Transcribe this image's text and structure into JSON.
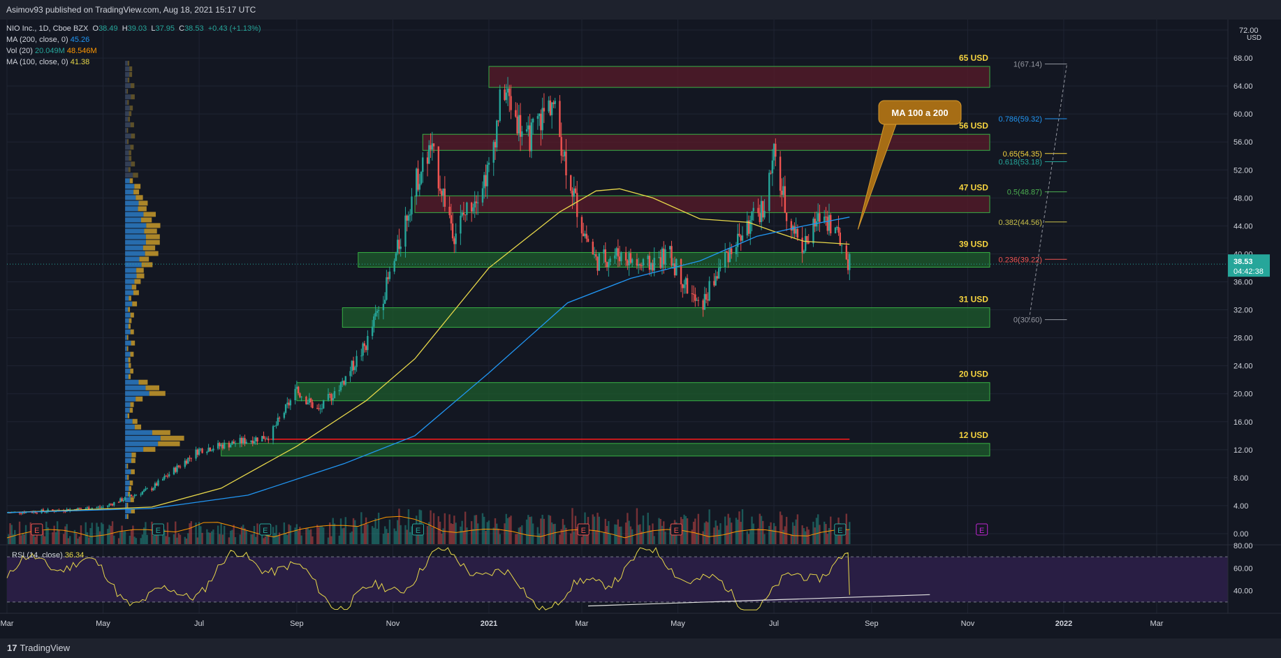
{
  "header": {
    "published": "Asimov93 published on TradingView.com, Aug 18, 2021 15:17 UTC"
  },
  "legend": {
    "symbol": "NIO Inc., 1D, Cboe BZX",
    "o_label": "O",
    "o_value": "38.49",
    "h_label": "H",
    "h_value": "39.03",
    "l_label": "L",
    "l_value": "37.95",
    "c_label": "C",
    "c_value": "38.53",
    "change": "+0.43 (+1.13%)",
    "ma200_label": "MA (200, close, 0)",
    "ma200_value": "45.26",
    "vol_label": "Vol (20)",
    "vol_value1": "20.049M",
    "vol_value2": "48.546M",
    "ma100_label": "MA (100, close, 0)",
    "ma100_value": "41.38"
  },
  "rsi_legend": {
    "label": "RSI (14, close)",
    "value": "36.34"
  },
  "footer": {
    "brand": "TradingView",
    "brand_glyph": "17"
  },
  "colors": {
    "background": "#131722",
    "bull": "#26a69a",
    "bear": "#ef5350",
    "ma200": "#2196f3",
    "ma100": "#e8d84a",
    "vol_ma": "#ff9800",
    "rsi": "#e8d84a",
    "zone_fill_green": "#1e5c2c",
    "zone_fill_red": "#5a1b2a",
    "zone_border": "#38b044",
    "zone_label": "#f5d33f",
    "callout_fill": "#a66d15",
    "price_tag": "#26a69a"
  },
  "chart_data": {
    "type": "candlestick",
    "x_tick_labels": [
      "Mar",
      "May",
      "Jul",
      "Sep",
      "Nov",
      "2021",
      "Mar",
      "May",
      "Jul",
      "Sep",
      "Nov",
      "2022",
      "Mar"
    ],
    "y_axis": {
      "unit": "USD",
      "ylim": [
        -1.5,
        73.5
      ],
      "ticks": [
        "72.00",
        "68.00",
        "64.00",
        "60.00",
        "56.00",
        "52.00",
        "48.00",
        "44.00",
        "40.00",
        "36.00",
        "32.00",
        "28.00",
        "24.00",
        "20.00",
        "16.00",
        "12.00",
        "8.00",
        "4.00",
        "0.00"
      ]
    },
    "price_series": {
      "x": [
        "2020-03-01",
        "2020-04-01",
        "2020-05-01",
        "2020-06-01",
        "2020-07-01",
        "2020-07-20",
        "2020-08-15",
        "2020-09-01",
        "2020-09-15",
        "2020-10-01",
        "2020-10-15",
        "2020-11-01",
        "2020-11-15",
        "2020-11-25",
        "2020-12-10",
        "2021-01-01",
        "2021-01-10",
        "2021-01-25",
        "2021-02-10",
        "2021-02-20",
        "2021-03-01",
        "2021-03-10",
        "2021-03-25",
        "2021-04-10",
        "2021-04-25",
        "2021-05-10",
        "2021-05-15",
        "2021-06-01",
        "2021-06-15",
        "2021-06-25",
        "2021-07-01",
        "2021-07-10",
        "2021-07-20",
        "2021-08-01",
        "2021-08-10",
        "2021-08-18"
      ],
      "close": [
        3.0,
        3.3,
        3.8,
        6.5,
        12.0,
        12.8,
        14.0,
        20.5,
        17.5,
        22.0,
        27.0,
        38.0,
        50.0,
        55.0,
        43.0,
        52.0,
        64.0,
        56.0,
        62.0,
        52.0,
        44.0,
        39.0,
        40.0,
        38.0,
        40.0,
        34.0,
        32.0,
        40.0,
        44.0,
        47.0,
        54.0,
        45.0,
        41.0,
        46.0,
        43.0,
        38.53
      ]
    },
    "ma100": {
      "x": [
        "2020-03-01",
        "2020-06-01",
        "2020-07-15",
        "2020-09-01",
        "2020-10-15",
        "2020-11-15",
        "2021-01-01",
        "2021-02-15",
        "2021-03-10",
        "2021-03-25",
        "2021-04-15",
        "2021-05-15",
        "2021-06-15",
        "2021-07-01",
        "2021-07-20",
        "2021-08-18"
      ],
      "y": [
        3.0,
        3.8,
        6.5,
        12.5,
        19.0,
        25.0,
        38.0,
        46.0,
        49.0,
        49.3,
        48.0,
        45.0,
        44.5,
        43.2,
        41.8,
        41.38
      ]
    },
    "ma200": {
      "x": [
        "2020-03-01",
        "2020-06-01",
        "2020-08-01",
        "2020-10-01",
        "2020-11-15",
        "2021-01-01",
        "2021-02-20",
        "2021-04-01",
        "2021-05-15",
        "2021-06-20",
        "2021-07-20",
        "2021-08-18"
      ],
      "y": [
        3.0,
        3.6,
        5.5,
        10.0,
        14.0,
        23.0,
        33.0,
        36.5,
        39.0,
        42.5,
        44.0,
        45.26
      ]
    },
    "zones": [
      {
        "label": "65 USD",
        "low": 63.8,
        "high": 66.8,
        "color": "red"
      },
      {
        "label": "56 USD",
        "low": 54.8,
        "high": 57.1,
        "color": "red"
      },
      {
        "label": "47 USD",
        "low": 45.9,
        "high": 48.3,
        "color": "red"
      },
      {
        "label": "39 USD",
        "low": 38.1,
        "high": 40.2,
        "color": "green"
      },
      {
        "label": "31 USD",
        "low": 29.5,
        "high": 32.3,
        "color": "green"
      },
      {
        "label": "20 USD",
        "low": 19.0,
        "high": 21.6,
        "color": "green"
      },
      {
        "label": "12 USD",
        "low": 11.1,
        "high": 12.9,
        "color": "green"
      }
    ],
    "red_level": 13.5,
    "fibonacci": [
      {
        "label": "1(67.14)",
        "value": 67.14,
        "color": "#9598a1"
      },
      {
        "label": "0.786(59.32)",
        "value": 59.32,
        "color": "#2196f3"
      },
      {
        "label": "0.65(54.35)",
        "value": 54.35,
        "color": "#f5d33f"
      },
      {
        "label": "0.618(53.18)",
        "value": 53.18,
        "color": "#26a69a"
      },
      {
        "label": "0.5(48.87)",
        "value": 48.87,
        "color": "#4caf50"
      },
      {
        "label": "0.382(44.56)",
        "value": 44.56,
        "color": "#c9c04a"
      },
      {
        "label": "0.236(39.22)",
        "value": 39.22,
        "color": "#ef5350"
      },
      {
        "label": "0(30.60)",
        "value": 30.6,
        "color": "#9598a1"
      }
    ],
    "callout": {
      "text": "MA 100 a 200"
    },
    "last_price": {
      "value": "38.53",
      "countdown": "04:42:38"
    },
    "earnings_markers": [
      {
        "x": "2020-03-20",
        "label": "E",
        "color": "red"
      },
      {
        "x": "2020-06-05",
        "label": "E",
        "color": "green"
      },
      {
        "x": "2020-08-12",
        "label": "E",
        "color": "green"
      },
      {
        "x": "2020-11-17",
        "label": "E",
        "color": "green"
      },
      {
        "x": "2021-03-02",
        "label": "E",
        "color": "red"
      },
      {
        "x": "2021-04-30",
        "label": "E",
        "color": "red"
      },
      {
        "x": "2021-08-12",
        "label": "E",
        "color": "green"
      },
      {
        "x": "2021-11-10",
        "label": "E",
        "color": "purple"
      }
    ],
    "rsi": {
      "ylim": [
        20,
        80
      ],
      "ticks": [
        "80.00",
        "60.00",
        "40.00"
      ],
      "upper_band": 70,
      "lower_band": 30,
      "value": 36.34
    }
  }
}
